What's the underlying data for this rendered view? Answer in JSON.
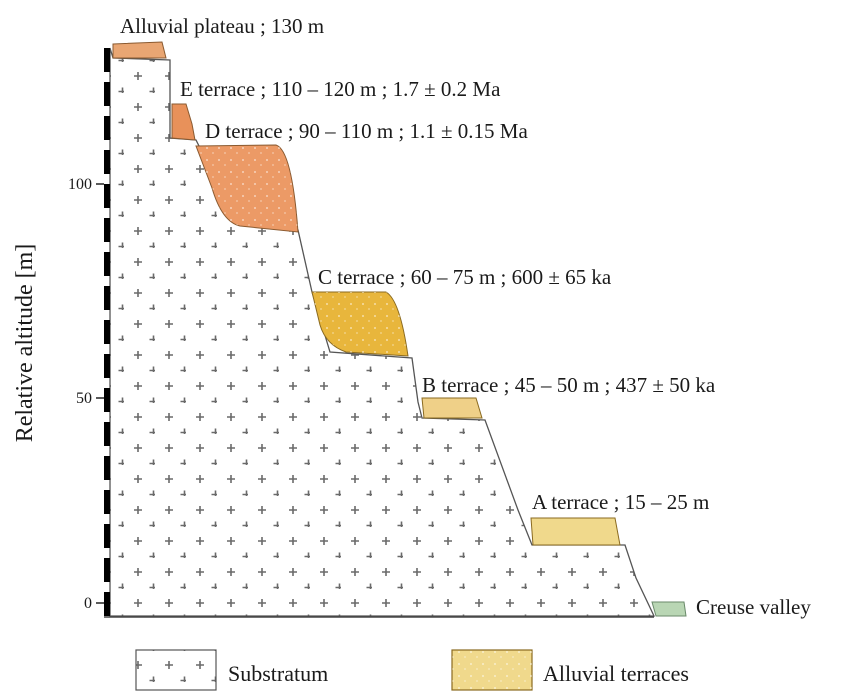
{
  "axis": {
    "title": "Relative altitude [m]",
    "ticks": [
      "0",
      "50",
      "100"
    ]
  },
  "terraces": [
    {
      "name": "alluvial-plateau",
      "label": "Alluvial plateau ; 130 m",
      "color": "#e9a673"
    },
    {
      "name": "e-terrace",
      "label": "E terrace ; 110 – 120 m ; 1.7 ± 0.2 Ma",
      "color": "#e8915a"
    },
    {
      "name": "d-terrace",
      "label": "D terrace ; 90 – 110 m ; 1.1 ± 0.15 Ma",
      "color": "#ec9a66"
    },
    {
      "name": "c-terrace",
      "label": "C terrace ; 60 – 75 m ; 600 ±  65 ka",
      "color": "#e8b63c"
    },
    {
      "name": "b-terrace",
      "label": "B terrace ; 45 – 50 m ; 437 ± 50 ka",
      "color": "#efd088"
    },
    {
      "name": "a-terrace",
      "label": "A terrace ; 15 – 25 m",
      "color": "#f0d98c"
    }
  ],
  "valley": {
    "label": "Creuse valley",
    "color": "#b9d6b4"
  },
  "legend": {
    "substratum": "Substratum",
    "alluvial": "Alluvial terraces"
  }
}
